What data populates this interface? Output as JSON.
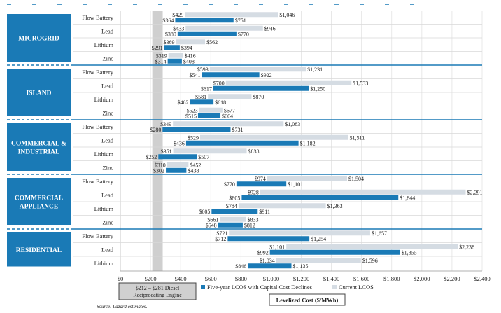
{
  "chart_data": {
    "type": "bar",
    "orientation": "horizontal",
    "xlabel": "Levelized Cost ($/MWh)",
    "xlim": [
      0,
      2400
    ],
    "xticks": [
      0,
      200,
      400,
      600,
      800,
      1000,
      1200,
      1400,
      1600,
      1800,
      2000,
      2200,
      2400
    ],
    "xtick_labels": [
      "$0",
      "$200",
      "$400",
      "$600",
      "$800",
      "$1,000",
      "$1,200",
      "$1,400",
      "$1,600",
      "$1,800",
      "$2,000",
      "$2,200",
      "$2,400"
    ],
    "series_names": [
      "Five-year LCOS with Capital Cost Declines",
      "Current LCOS"
    ],
    "colors": {
      "five_year": "#1a7ab6",
      "current": "#d5dce3",
      "category_box": "#1a7ab6",
      "diesel_band": "#cfcfcf"
    },
    "diesel_band": {
      "low": 212,
      "high": 281,
      "label_line1": "$212 – $281 Diesel",
      "label_line2": "Reciprocating Engine"
    },
    "source": "Source:  Lazard estimates.",
    "groups": [
      {
        "category": [
          "MICROGRID"
        ],
        "rows": [
          {
            "tech": "Flow Battery",
            "current": [
              429,
              1046
            ],
            "five_year": [
              364,
              751
            ],
            "labels": {
              "current_low": "$429",
              "current_high": "$1,046",
              "five_low": "$364",
              "five_high": "$751"
            }
          },
          {
            "tech": "Lead",
            "current": [
              433,
              946
            ],
            "five_year": [
              380,
              770
            ],
            "labels": {
              "current_low": "$433",
              "current_high": "$946",
              "five_low": "$380",
              "five_high": "$770"
            }
          },
          {
            "tech": "Lithium",
            "current": [
              369,
              562
            ],
            "five_year": [
              291,
              394
            ],
            "labels": {
              "current_low": "$369",
              "current_high": "$562",
              "five_low": "$291",
              "five_high": "$394"
            }
          },
          {
            "tech": "Zinc",
            "current": [
              319,
              416
            ],
            "five_year": [
              314,
              408
            ],
            "labels": {
              "current_low": "$319",
              "current_high": "$416",
              "five_low": "$314",
              "five_high": "$408"
            }
          }
        ]
      },
      {
        "category": [
          "ISLAND"
        ],
        "rows": [
          {
            "tech": "Flow Battery",
            "current": [
              593,
              1231
            ],
            "five_year": [
              541,
              922
            ],
            "labels": {
              "current_low": "$593",
              "current_high": "$1,231",
              "five_low": "$541",
              "five_high": "$922"
            }
          },
          {
            "tech": "Lead",
            "current": [
              700,
              1533
            ],
            "five_year": [
              617,
              1250
            ],
            "labels": {
              "current_low": "$700",
              "current_high": "$1,533",
              "five_low": "$617",
              "five_high": "$1,250"
            }
          },
          {
            "tech": "Lithium",
            "current": [
              581,
              870
            ],
            "five_year": [
              462,
              618
            ],
            "labels": {
              "current_low": "$581",
              "current_high": "$870",
              "five_low": "$462",
              "five_high": "$618"
            }
          },
          {
            "tech": "Zinc",
            "current": [
              523,
              677
            ],
            "five_year": [
              515,
              664
            ],
            "labels": {
              "current_low": "$523",
              "current_high": "$677",
              "five_low": "$515",
              "five_high": "$664"
            }
          }
        ]
      },
      {
        "category": [
          "COMMERCIAL &",
          "INDUSTRIAL"
        ],
        "rows": [
          {
            "tech": "Flow Battery",
            "current": [
              349,
              1083
            ],
            "five_year": [
              280,
              731
            ],
            "labels": {
              "current_low": "$349",
              "current_high": "$1,083",
              "five_low": "$280",
              "five_high": "$731"
            }
          },
          {
            "tech": "Lead",
            "current": [
              529,
              1511
            ],
            "five_year": [
              436,
              1182
            ],
            "labels": {
              "current_low": "$529",
              "current_high": "$1,511",
              "five_low": "$436",
              "five_high": "$1,182"
            }
          },
          {
            "tech": "Lithium",
            "current": [
              351,
              838
            ],
            "five_year": [
              252,
              507
            ],
            "labels": {
              "current_low": "$351",
              "current_high": "$838",
              "five_low": "$252",
              "five_high": "$507"
            }
          },
          {
            "tech": "Zinc",
            "current": [
              310,
              452
            ],
            "five_year": [
              302,
              438
            ],
            "labels": {
              "current_low": "$310",
              "current_high": "$452",
              "five_low": "$302",
              "five_high": "$438"
            }
          }
        ]
      },
      {
        "category": [
          "COMMERCIAL",
          "APPLIANCE"
        ],
        "rows": [
          {
            "tech": "Flow Battery",
            "current": [
              974,
              1504
            ],
            "five_year": [
              770,
              1101
            ],
            "labels": {
              "current_low": "$974",
              "current_high": "$1,504",
              "five_low": "$770",
              "five_high": "$1,101"
            }
          },
          {
            "tech": "Lead",
            "current": [
              928,
              2291
            ],
            "five_year": [
              805,
              1844
            ],
            "labels": {
              "current_low": "$928",
              "current_high": "$2,291",
              "five_low": "$805",
              "five_high": "$1,844"
            }
          },
          {
            "tech": "Lithium",
            "current": [
              784,
              1363
            ],
            "five_year": [
              605,
              911
            ],
            "labels": {
              "current_low": "$784",
              "current_high": "$1,363",
              "five_low": "$605",
              "five_high": "$911"
            }
          },
          {
            "tech": "Zinc",
            "current": [
              661,
              833
            ],
            "five_year": [
              648,
              812
            ],
            "labels": {
              "current_low": "$661",
              "current_high": "$833",
              "five_low": "$648",
              "five_high": "$812"
            }
          }
        ]
      },
      {
        "category": [
          "RESIDENTIAL"
        ],
        "rows": [
          {
            "tech": "Flow Battery",
            "current": [
              721,
              1657
            ],
            "five_year": [
              712,
              1254
            ],
            "labels": {
              "current_low": "$721",
              "current_high": "$1,657",
              "five_low": "$712",
              "five_high": "$1,254"
            }
          },
          {
            "tech": "Lead",
            "current": [
              1101,
              2238
            ],
            "five_year": [
              992,
              1855
            ],
            "labels": {
              "current_low": "$1,101",
              "current_high": "$2,238",
              "five_low": "$992",
              "five_high": "$1,855"
            }
          },
          {
            "tech": "Lithium",
            "current": [
              1034,
              1596
            ],
            "five_year": [
              846,
              1135
            ],
            "labels": {
              "current_low": "$1,034",
              "current_high": "$1,596",
              "five_low": "$846",
              "five_high": "$1,135"
            }
          }
        ]
      }
    ]
  }
}
